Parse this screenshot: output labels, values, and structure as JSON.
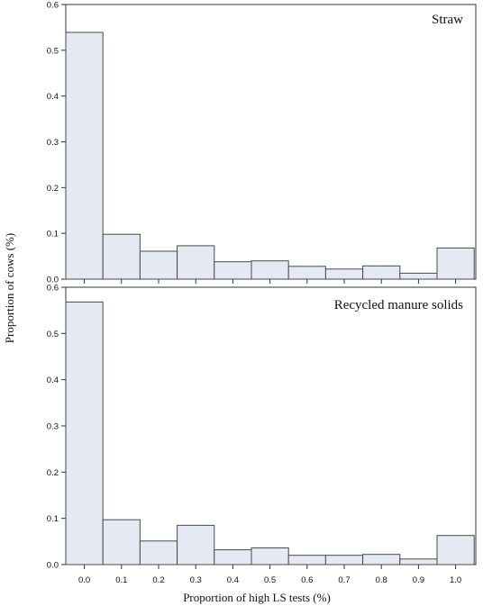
{
  "chart_data": {
    "type": "bar",
    "xlabel": "Proportion of high LS tests (%)",
    "ylabel": "Proportion of cows (%)",
    "categories": [
      "0.0",
      "0.1",
      "0.2",
      "0.3",
      "0.4",
      "0.5",
      "0.6",
      "0.7",
      "0.8",
      "0.9",
      "1.0"
    ],
    "ylim": [
      0,
      0.6
    ],
    "yticks": [
      "0.0",
      "0.1",
      "0.2",
      "0.3",
      "0.4",
      "0.5",
      "0.6"
    ],
    "grid": false,
    "colors": {
      "bar_fill": "#e5e9f3",
      "bar_stroke": "#4a4a4a"
    },
    "panels": [
      {
        "title": "Straw",
        "values": [
          0.539,
          0.098,
          0.061,
          0.073,
          0.038,
          0.04,
          0.028,
          0.022,
          0.029,
          0.013,
          0.068
        ]
      },
      {
        "title": "Recycled manure solids",
        "values": [
          0.568,
          0.097,
          0.051,
          0.085,
          0.032,
          0.036,
          0.02,
          0.02,
          0.022,
          0.012,
          0.063
        ]
      }
    ]
  }
}
